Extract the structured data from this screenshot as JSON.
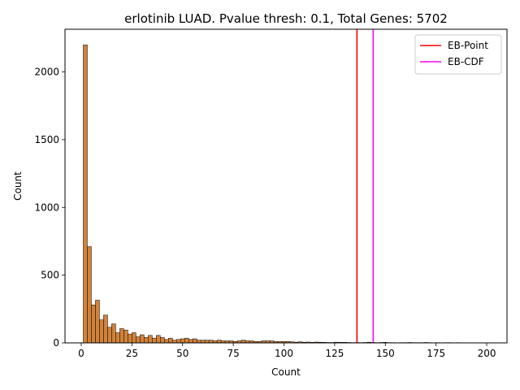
{
  "chart_data": {
    "type": "bar",
    "title": "erlotinib LUAD. Pvalue thresh: 0.1, Total Genes: 5702",
    "xlabel": "Count",
    "ylabel": "Count",
    "xlim": [
      -8,
      210
    ],
    "ylim": [
      0,
      2315
    ],
    "xticks": [
      0,
      25,
      50,
      75,
      100,
      125,
      150,
      175,
      200
    ],
    "yticks": [
      0,
      500,
      1000,
      1500,
      2000
    ],
    "bin_start": 1,
    "bin_width": 2,
    "values": [
      2200,
      710,
      280,
      315,
      170,
      205,
      115,
      140,
      75,
      105,
      95,
      65,
      75,
      45,
      60,
      40,
      55,
      35,
      55,
      40,
      25,
      35,
      20,
      25,
      30,
      35,
      25,
      30,
      20,
      20,
      20,
      20,
      15,
      20,
      15,
      15,
      15,
      10,
      15,
      20,
      15,
      15,
      10,
      10,
      15,
      15,
      15,
      10,
      10,
      10,
      10,
      8,
      5,
      8,
      5,
      6,
      4,
      6,
      5,
      4,
      3,
      3,
      5,
      4,
      4,
      3,
      2,
      3,
      2,
      3,
      5,
      3,
      2,
      3,
      4,
      2,
      2,
      1,
      2,
      2,
      3,
      2,
      2,
      2,
      3,
      2,
      1,
      2,
      1,
      2,
      2,
      1,
      2,
      1,
      1,
      1,
      1,
      1,
      1,
      1
    ],
    "bar_color": "#d2823a",
    "vlines": [
      {
        "name": "EB-Point",
        "x": 136,
        "color": "#ff0000"
      },
      {
        "name": "EB-CDF",
        "x": 144,
        "color": "#ff00ff"
      }
    ],
    "legend_position": "top-right",
    "grid": false
  }
}
